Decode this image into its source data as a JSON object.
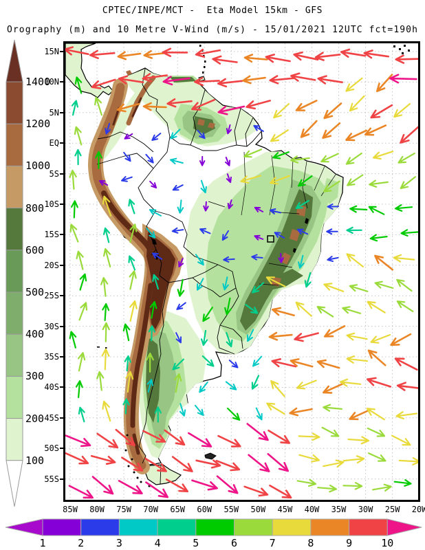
{
  "header": {
    "line1": "CPTEC/INPE/MCT -  Eta Model 15km - GFS",
    "line2": "Orography (m) and 10 Metre V-Wind (m/s) - 15/01/2021 12UTC fct=190h"
  },
  "orography_scale": {
    "unit": "m",
    "labels": [
      "1400",
      "1200",
      "1000",
      "800",
      "600",
      "500",
      "400",
      "300",
      "200",
      "100"
    ],
    "segment_colors": [
      "#8B4B31",
      "#A86B40",
      "#C59A64",
      "#55793C",
      "#6A9A58",
      "#7FAD6C",
      "#98C584",
      "#B5E19E",
      "#DFF4CE"
    ],
    "top_arrow_color": "#693023",
    "bottom_arrow_color": "#FFFFFF",
    "outline_color": "#999999"
  },
  "wind_scale": {
    "unit": "m/s",
    "labels": [
      "1",
      "2",
      "3",
      "4",
      "5",
      "6",
      "7",
      "8",
      "9",
      "10"
    ],
    "segment_colors": [
      "#8500D6",
      "#2B3BEA",
      "#00C9C6",
      "#00CE8C",
      "#00CB00",
      "#9ADB3B",
      "#E9DA3B",
      "#EB8626",
      "#F04345"
    ],
    "speed_colors": [
      "#8500D6",
      "#2B3BEA",
      "#00C9C6",
      "#00CE8C",
      "#00CB00",
      "#9ADB3B",
      "#E9DA3B",
      "#EB8626",
      "#F04345",
      "#EE1589"
    ],
    "left_arrow_color": "#A80ACD",
    "right_arrow_color": "#EE1589",
    "outline_color": "#AAAAAA"
  },
  "axes": {
    "lat_labels": [
      "15N",
      "10N",
      "5N",
      "EQ",
      "5S",
      "10S",
      "15S",
      "20S",
      "25S",
      "30S",
      "35S",
      "40S",
      "45S",
      "50S",
      "55S"
    ],
    "lon_labels": [
      "85W",
      "80W",
      "75W",
      "70W",
      "65W",
      "60W",
      "55W",
      "50W",
      "45W",
      "40W",
      "35W",
      "30W",
      "25W",
      "20W"
    ]
  },
  "map": {
    "frame_color": "#000000",
    "grid_color": "#C4C4C4",
    "ocean_color": "#FFFFFF",
    "coast_color": "#000000",
    "border_color": "#000000",
    "lake_color": "#000000"
  },
  "terrain": {
    "palette": {
      "c0": "#FFFFFF",
      "c100": "#DFF4CE",
      "c200": "#B5E19E",
      "c300": "#98C584",
      "c400": "#7FAD6C",
      "c500": "#6A9A58",
      "c600": "#55793C",
      "c800": "#C59A64",
      "c1000": "#A86B40",
      "c1200": "#8B4B31",
      "c1400": "#5E2A16"
    }
  },
  "wind_field": {
    "grid": {
      "cols": 14,
      "rows": 18,
      "seed": 20210115,
      "jitter": 14
    },
    "zones": [
      {
        "name": "north-edge",
        "x": [
          0,
          1
        ],
        "y": [
          0,
          0.082
        ],
        "dir": [
          168,
          196
        ],
        "spd": [
          8,
          10
        ]
      },
      {
        "name": "cam-pacific",
        "x": [
          0,
          0.1
        ],
        "y": [
          0.082,
          0.33
        ],
        "dir": [
          252,
          288
        ],
        "spd": [
          4,
          6
        ]
      },
      {
        "name": "caribbean",
        "x": [
          0.1,
          0.58
        ],
        "y": [
          0.082,
          0.158
        ],
        "dir": [
          152,
          184
        ],
        "spd": [
          8,
          10
        ]
      },
      {
        "name": "natl-trades",
        "x": [
          0.58,
          1
        ],
        "y": [
          0.082,
          0.225
        ],
        "dir": [
          124,
          156
        ],
        "spd": [
          7,
          9
        ]
      },
      {
        "name": "natl-mid",
        "x": [
          0.52,
          1
        ],
        "y": [
          0.225,
          0.33
        ],
        "dir": [
          138,
          176
        ],
        "spd": [
          5,
          7
        ]
      },
      {
        "name": "pacific",
        "x": [
          0,
          0.2
        ],
        "y": [
          0.33,
          0.84
        ],
        "dir": [
          248,
          292
        ],
        "spd": [
          4,
          7
        ]
      },
      {
        "name": "amazon",
        "x": [
          0,
          0.62
        ],
        "y": [
          0.158,
          0.5
        ],
        "dir": [
          45,
          215
        ],
        "spd": [
          1,
          3
        ]
      },
      {
        "name": "brazil-east",
        "x": [
          0.62,
          0.78
        ],
        "y": [
          0.33,
          0.52
        ],
        "dir": [
          90,
          235
        ],
        "spd": [
          1,
          4
        ]
      },
      {
        "name": "eq-atlantic",
        "x": [
          0.62,
          1
        ],
        "y": [
          0.33,
          0.45
        ],
        "dir": [
          168,
          208
        ],
        "spd": [
          4,
          6
        ]
      },
      {
        "name": "satl-trades",
        "x": [
          0.58,
          1
        ],
        "y": [
          0.45,
          0.63
        ],
        "dir": [
          185,
          222
        ],
        "spd": [
          6,
          8
        ]
      },
      {
        "name": "chile-coast",
        "x": [
          0.2,
          0.32
        ],
        "y": [
          0.5,
          0.84
        ],
        "dir": [
          250,
          286
        ],
        "spd": [
          3,
          6
        ]
      },
      {
        "name": "argentina",
        "x": [
          0.32,
          0.58
        ],
        "y": [
          0.5,
          0.84
        ],
        "dir": [
          35,
          145
        ],
        "spd": [
          2,
          5
        ]
      },
      {
        "name": "satl-storm",
        "x": [
          0.55,
          1
        ],
        "y": [
          0.63,
          0.84
        ],
        "dir": [
          148,
          232
        ],
        "spd": [
          6,
          9
        ]
      },
      {
        "name": "south-west",
        "x": [
          0,
          0.62
        ],
        "y": [
          0.84,
          1
        ],
        "dir": [
          12,
          42
        ],
        "spd": [
          9,
          10
        ]
      },
      {
        "name": "south-east",
        "x": [
          0.62,
          1
        ],
        "y": [
          0.84,
          1
        ],
        "dir": [
          -12,
          28
        ],
        "spd": [
          5,
          8
        ]
      },
      {
        "name": "default",
        "x": [
          0,
          1
        ],
        "y": [
          0,
          1
        ],
        "dir": [
          170,
          195
        ],
        "spd": [
          5,
          6
        ]
      }
    ]
  }
}
